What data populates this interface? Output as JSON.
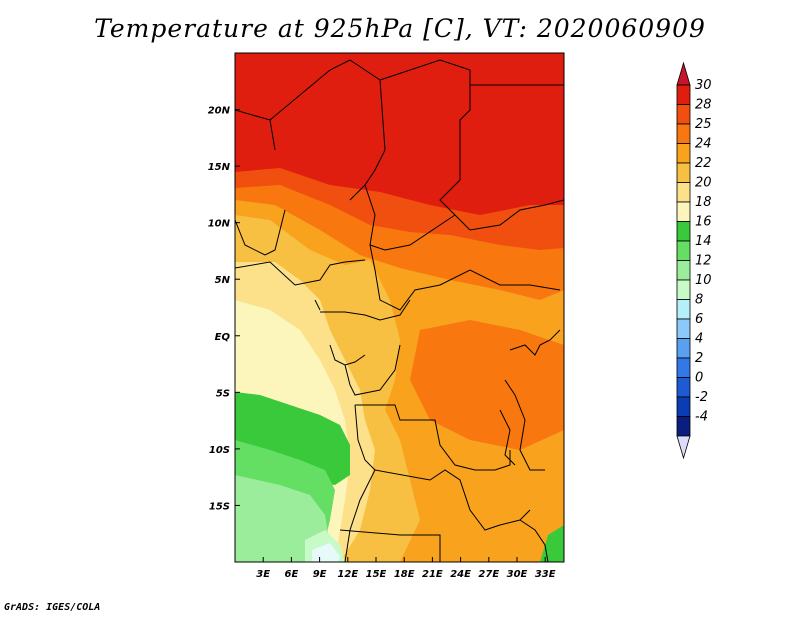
{
  "title": "Temperature at 925hPa [C], VT: 2020060909",
  "credit": "GrADS: IGES/COLA",
  "map": {
    "lon_range": [
      0,
      35
    ],
    "lat_range": [
      -20,
      25
    ],
    "x_ticks": [
      "3E",
      "6E",
      "9E",
      "12E",
      "15E",
      "18E",
      "21E",
      "24E",
      "27E",
      "30E",
      "33E"
    ],
    "x_tick_values": [
      3,
      6,
      9,
      12,
      15,
      18,
      21,
      24,
      27,
      30,
      33
    ],
    "y_ticks": [
      "20N",
      "15N",
      "10N",
      "5N",
      "EQ",
      "5S",
      "10S",
      "15S"
    ],
    "y_tick_values": [
      20,
      15,
      10,
      5,
      0,
      -5,
      -10,
      -15
    ]
  },
  "colorbar": {
    "labels": [
      "30",
      "28",
      "25",
      "24",
      "22",
      "20",
      "18",
      "16",
      "14",
      "12",
      "10",
      "8",
      "6",
      "4",
      "2",
      "0",
      "-2",
      "-4"
    ],
    "colors": [
      "#e01e0f",
      "#f04f0f",
      "#f8780f",
      "#f8a21e",
      "#f8c042",
      "#fce08a",
      "#fcf6bc",
      "#3ac93a",
      "#64df64",
      "#9bec9b",
      "#c8fac8",
      "#b4f0fa",
      "#8cc8f8",
      "#5aa0f0",
      "#3278e6",
      "#1e5ad2",
      "#0a3cb4",
      "#0a1e82"
    ],
    "top_arrow_color": "#c8142b",
    "bottom_arrow_color": "#dcdcfa"
  }
}
